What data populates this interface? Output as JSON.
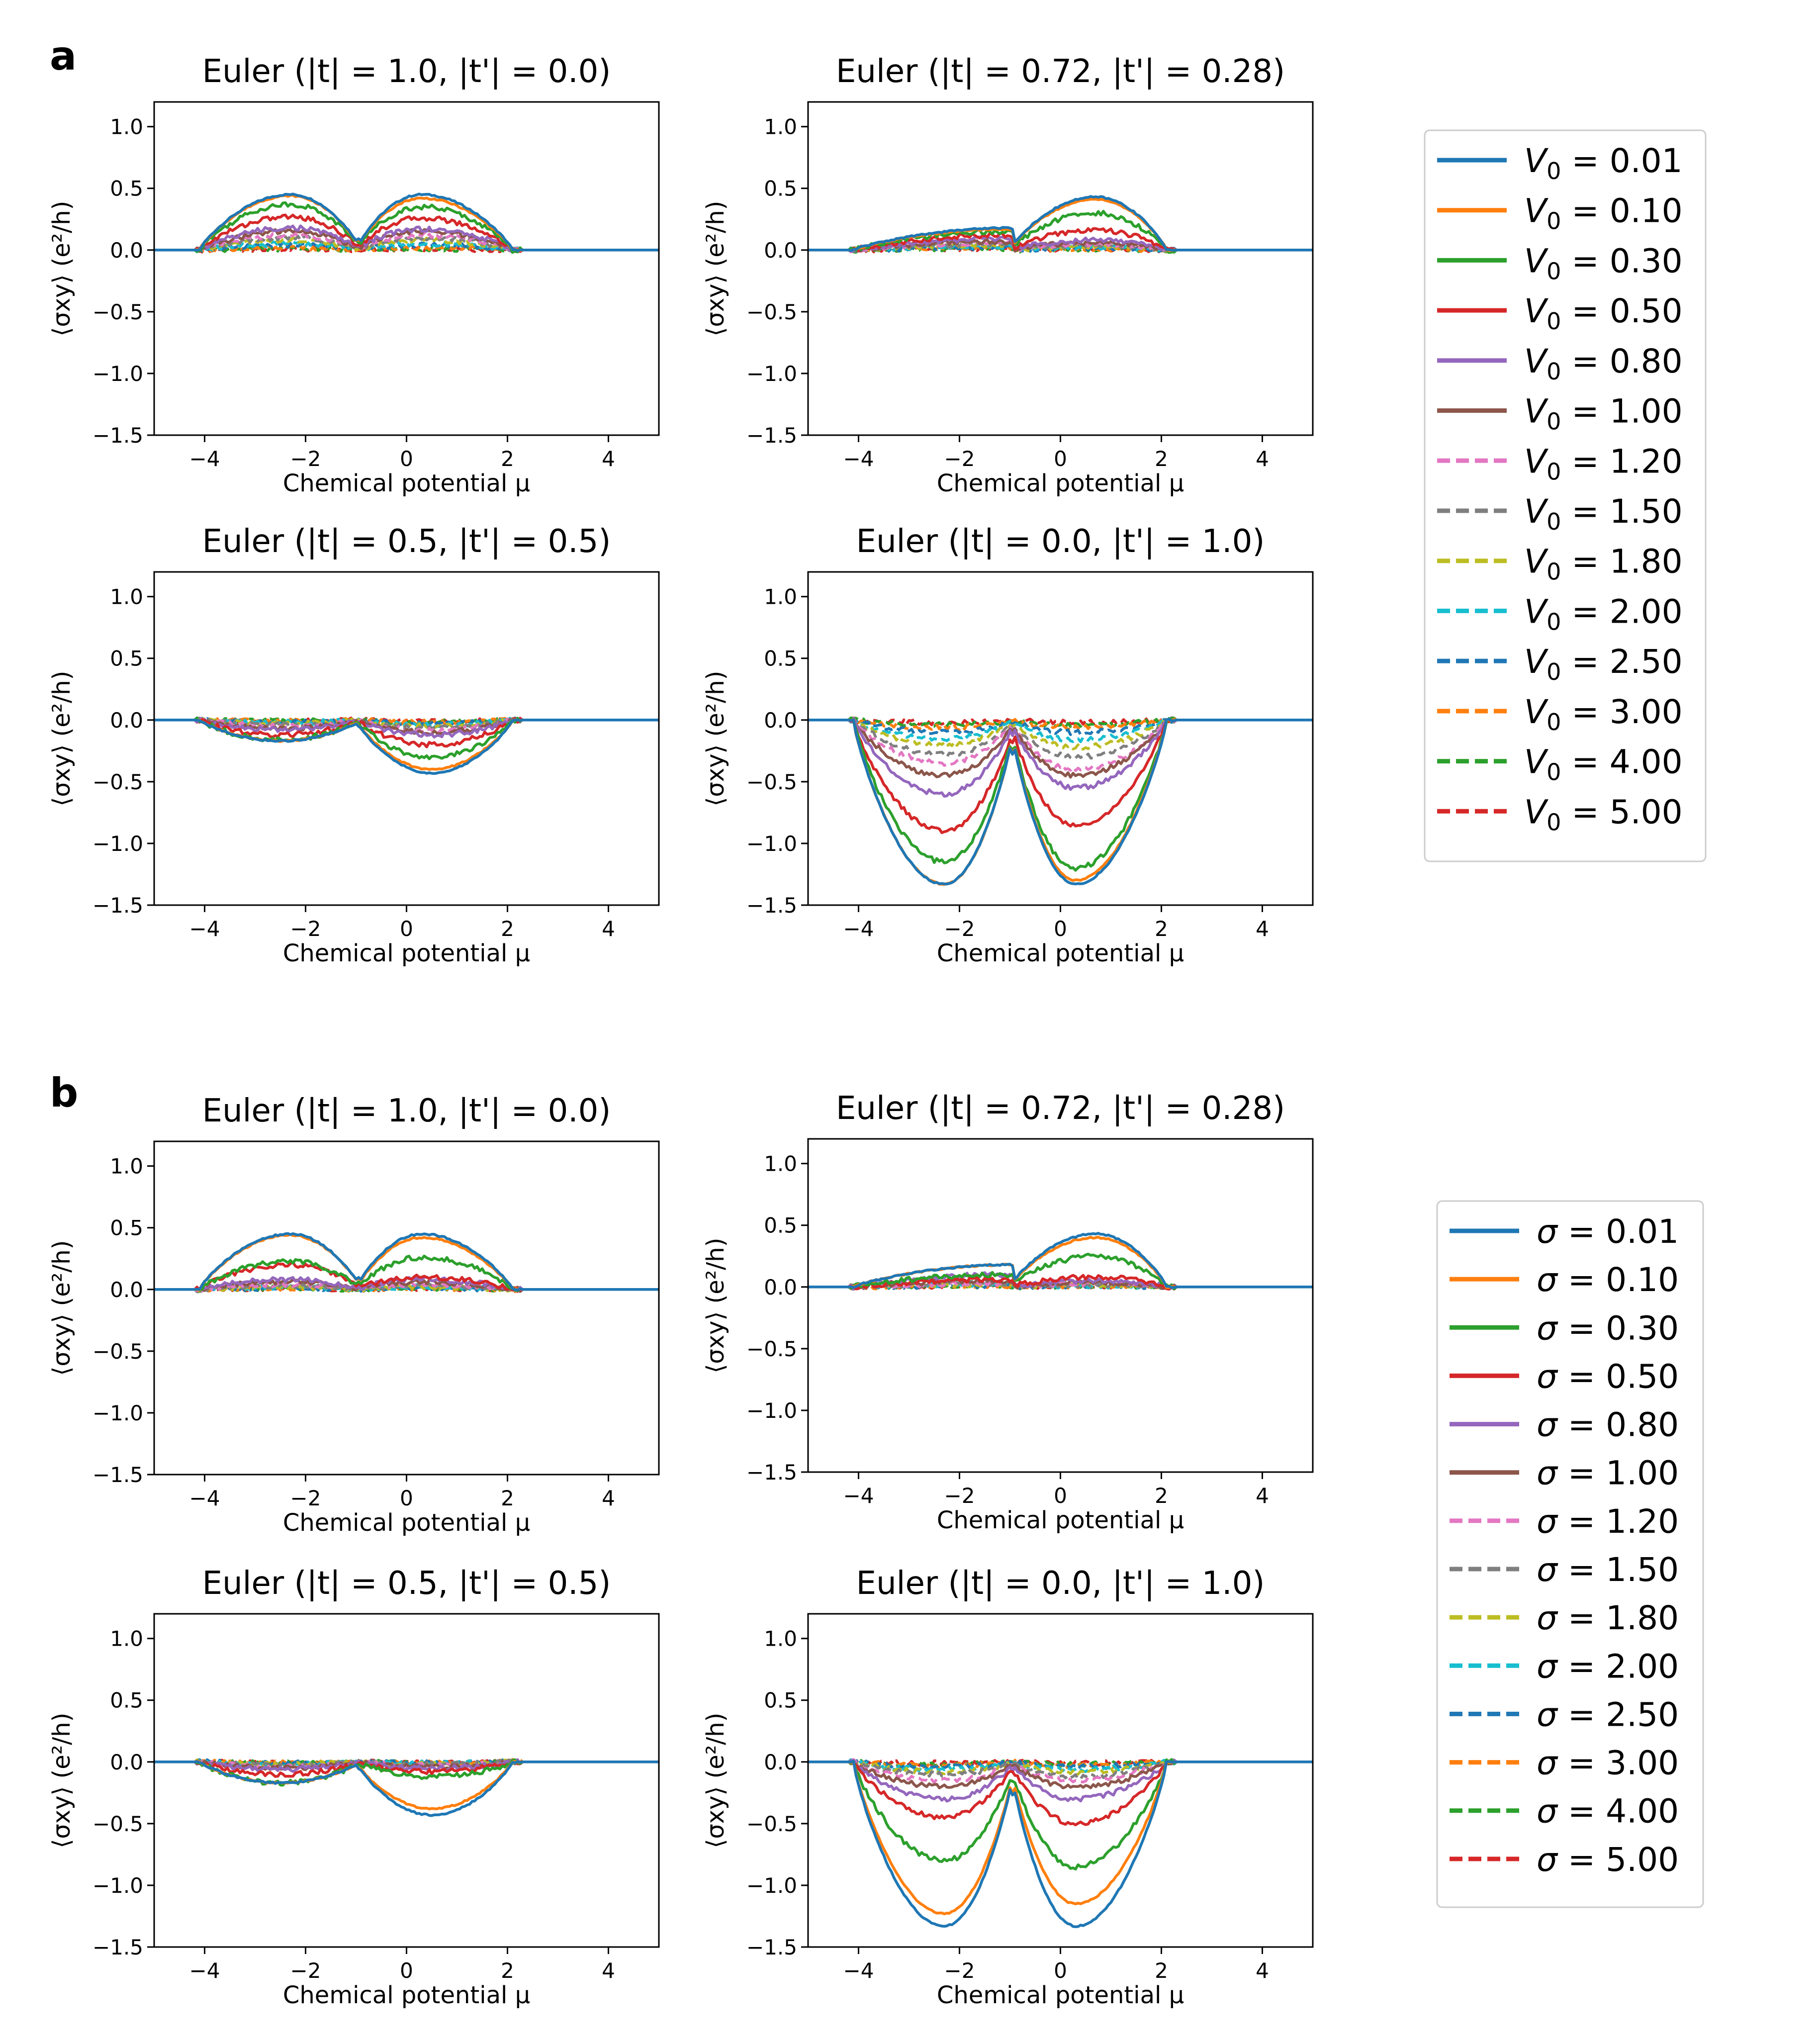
{
  "figure": {
    "panels": [
      {
        "letter": "a",
        "legend_param": "V0",
        "legend_prefix": "V",
        "legend_sub": "0"
      },
      {
        "letter": "b",
        "legend_param": "sigma",
        "legend_prefix": "σ",
        "legend_sub": ""
      }
    ],
    "legend_values": [
      "0.01",
      "0.10",
      "0.30",
      "0.50",
      "0.80",
      "1.00",
      "1.20",
      "1.50",
      "1.80",
      "2.00",
      "2.50",
      "3.00",
      "4.00",
      "5.00"
    ],
    "series_colors": [
      "#1f77b4",
      "#ff7f0e",
      "#2ca02c",
      "#d62728",
      "#9467bd",
      "#8c564b",
      "#e377c2",
      "#7f7f7f",
      "#bcbd22",
      "#17becf",
      "#1f77b4",
      "#ff7f0e",
      "#2ca02c",
      "#d62728"
    ],
    "series_styles": [
      "solid",
      "solid",
      "solid",
      "solid",
      "solid",
      "solid",
      "dashed",
      "dashed",
      "dashed",
      "dashed",
      "dashed",
      "dashed",
      "dashed",
      "dashed"
    ]
  },
  "chart_data": [
    {
      "panel": "a",
      "type": "line",
      "title": "Euler (|t| = 1.0, |t'| = 0.0)",
      "xlabel": "Chemical potential μ",
      "ylabel": "⟨σxy⟩ (e²/h)",
      "xlim": [
        -5,
        5
      ],
      "ylim": [
        -1.5,
        1.2
      ],
      "xticks": [
        "−4",
        "−2",
        "0",
        "2",
        "4"
      ],
      "yticks": [
        "1.0",
        "0.5",
        "0.0",
        "−0.5",
        "−1.0",
        "−1.5"
      ],
      "peaks": [
        [
          -2.3,
          0.45,
          0.44,
          0.37,
          0.27,
          0.18,
          0.15,
          0.12,
          0.1,
          0.08,
          0.05,
          0.04,
          0.02,
          0.01,
          0.01
        ],
        [
          0.3,
          0.45,
          0.42,
          0.35,
          0.26,
          0.17,
          0.15,
          0.12,
          0.1,
          0.08,
          0.05,
          0.04,
          0.02,
          0.01,
          0.01
        ]
      ]
    },
    {
      "panel": "a",
      "type": "line",
      "title": "Euler (|t| = 0.72, |t'| = 0.28)",
      "xlabel": "Chemical potential μ",
      "ylabel": "⟨σxy⟩ (e²/h)",
      "xlim": [
        -5,
        5
      ],
      "ylim": [
        -1.5,
        1.2
      ],
      "xticks": [
        "−4",
        "−2",
        "0",
        "2",
        "4"
      ],
      "yticks": [
        "1.0",
        "0.5",
        "0.0",
        "−0.5",
        "−1.0",
        "−1.5"
      ],
      "peaks": [
        [
          -1.0,
          0.18,
          0.17,
          0.15,
          0.12,
          0.09,
          0.07,
          0.06,
          0.05,
          0.04,
          0.03,
          0.02,
          0.02,
          0.01,
          0.01
        ],
        [
          0.7,
          0.43,
          0.41,
          0.3,
          0.16,
          0.08,
          0.06,
          0.05,
          0.04,
          0.03,
          0.02,
          0.02,
          0.01,
          0.01,
          0.01
        ]
      ]
    },
    {
      "panel": "a",
      "type": "line",
      "title": "Euler (|t| = 0.5, |t'| = 0.5)",
      "xlabel": "Chemical potential μ",
      "ylabel": "⟨σxy⟩ (e²/h)",
      "xlim": [
        -5,
        5
      ],
      "ylim": [
        -1.5,
        1.2
      ],
      "xticks": [
        "−4",
        "−2",
        "0",
        "2",
        "4"
      ],
      "yticks": [
        "1.0",
        "0.5",
        "0.0",
        "−0.5",
        "−1.0",
        "−1.5"
      ],
      "peaks": [
        [
          -2.5,
          -0.17,
          -0.17,
          -0.16,
          -0.12,
          -0.08,
          -0.07,
          -0.05,
          -0.04,
          -0.03,
          -0.02,
          -0.02,
          -0.01,
          -0.01,
          -0.01
        ],
        [
          0.5,
          -0.43,
          -0.4,
          -0.3,
          -0.2,
          -0.12,
          -0.1,
          -0.08,
          -0.06,
          -0.05,
          -0.04,
          -0.03,
          -0.02,
          -0.02,
          -0.01
        ]
      ]
    },
    {
      "panel": "a",
      "type": "line",
      "title": "Euler (|t| = 0.0, |t'| = 1.0)",
      "xlabel": "Chemical potential μ",
      "ylabel": "⟨σxy⟩ (e²/h)",
      "xlim": [
        -5,
        5
      ],
      "ylim": [
        -1.5,
        1.2
      ],
      "xticks": [
        "−4",
        "−2",
        "0",
        "2",
        "4"
      ],
      "yticks": [
        "1.0",
        "0.5",
        "0.0",
        "−0.5",
        "−1.0",
        "−1.5"
      ],
      "peaks": [
        [
          -2.3,
          -1.33,
          -1.33,
          -1.15,
          -0.9,
          -0.6,
          -0.45,
          -0.35,
          -0.28,
          -0.2,
          -0.15,
          -0.1,
          -0.06,
          -0.04,
          -0.02
        ],
        [
          0.3,
          -1.33,
          -1.3,
          -1.2,
          -0.85,
          -0.55,
          -0.45,
          -0.4,
          -0.3,
          -0.22,
          -0.16,
          -0.1,
          -0.06,
          -0.04,
          -0.02
        ]
      ]
    },
    {
      "panel": "b",
      "type": "line",
      "title": "Euler (|t| = 1.0, |t'| = 0.0)",
      "xlabel": "Chemical potential μ",
      "ylabel": "⟨σxy⟩ (e²/h)",
      "xlim": [
        -5,
        5
      ],
      "ylim": [
        -1.5,
        1.2
      ],
      "xticks": [
        "−4",
        "−2",
        "0",
        "2",
        "4"
      ],
      "yticks": [
        "1.0",
        "0.5",
        "0.0",
        "−0.5",
        "−1.0",
        "−1.5"
      ],
      "peaks": [
        [
          -2.3,
          0.45,
          0.44,
          0.23,
          0.2,
          0.08,
          0.06,
          0.04,
          0.03,
          0.02,
          0.02,
          0.01,
          0.01,
          0.01,
          0.01
        ],
        [
          0.3,
          0.45,
          0.42,
          0.26,
          0.1,
          0.08,
          0.06,
          0.04,
          0.03,
          0.02,
          0.02,
          0.01,
          0.01,
          0.01,
          0.01
        ]
      ]
    },
    {
      "panel": "b",
      "type": "line",
      "title": "Euler (|t| = 0.72, |t'| = 0.28)",
      "xlabel": "Chemical potential μ",
      "ylabel": "⟨σxy⟩ (e²/h)",
      "xlim": [
        -5,
        5
      ],
      "ylim": [
        -1.5,
        1.2
      ],
      "xticks": [
        "−4",
        "−2",
        "0",
        "2",
        "4"
      ],
      "yticks": [
        "1.0",
        "0.5",
        "0.0",
        "−0.5",
        "−1.0",
        "−1.5"
      ],
      "peaks": [
        [
          -1.0,
          0.18,
          0.18,
          0.1,
          0.06,
          0.1,
          0.05,
          0.03,
          0.03,
          0.02,
          0.02,
          0.01,
          0.01,
          0.01,
          0.01
        ],
        [
          0.7,
          0.43,
          0.4,
          0.25,
          0.08,
          0.05,
          0.04,
          0.03,
          0.02,
          0.02,
          0.01,
          0.01,
          0.01,
          0.01,
          0.01
        ]
      ]
    },
    {
      "panel": "b",
      "type": "line",
      "title": "Euler (|t| = 0.5, |t'| = 0.5)",
      "xlabel": "Chemical potential μ",
      "ylabel": "⟨σxy⟩ (e²/h)",
      "xlim": [
        -5,
        5
      ],
      "ylim": [
        -1.5,
        1.2
      ],
      "xticks": [
        "−4",
        "−2",
        "0",
        "2",
        "4"
      ],
      "yticks": [
        "1.0",
        "0.5",
        "0.0",
        "−0.5",
        "−1.0",
        "−1.5"
      ],
      "peaks": [
        [
          -2.5,
          -0.17,
          -0.17,
          -0.17,
          -0.1,
          -0.06,
          -0.05,
          -0.04,
          -0.03,
          -0.02,
          -0.02,
          -0.01,
          -0.01,
          -0.01,
          -0.01
        ],
        [
          0.5,
          -0.43,
          -0.38,
          -0.12,
          -0.08,
          -0.05,
          -0.04,
          -0.03,
          -0.02,
          -0.02,
          -0.01,
          -0.01,
          -0.01,
          -0.01,
          -0.01
        ]
      ]
    },
    {
      "panel": "b",
      "type": "line",
      "title": "Euler (|t| = 0.0, |t'| = 1.0)",
      "xlabel": "Chemical potential μ",
      "ylabel": "⟨σxy⟩ (e²/h)",
      "xlim": [
        -5,
        5
      ],
      "ylim": [
        -1.5,
        1.2
      ],
      "xticks": [
        "−4",
        "−2",
        "0",
        "2",
        "4"
      ],
      "yticks": [
        "1.0",
        "0.5",
        "0.0",
        "−0.5",
        "−1.0",
        "−1.5"
      ],
      "peaks": [
        [
          -2.3,
          -1.33,
          -1.23,
          -0.8,
          -0.45,
          -0.3,
          -0.2,
          -0.15,
          -0.1,
          -0.08,
          -0.06,
          -0.04,
          -0.03,
          -0.02,
          -0.01
        ],
        [
          0.3,
          -1.33,
          -1.15,
          -0.85,
          -0.5,
          -0.3,
          -0.2,
          -0.15,
          -0.12,
          -0.08,
          -0.06,
          -0.04,
          -0.03,
          -0.02,
          -0.01
        ]
      ]
    }
  ]
}
